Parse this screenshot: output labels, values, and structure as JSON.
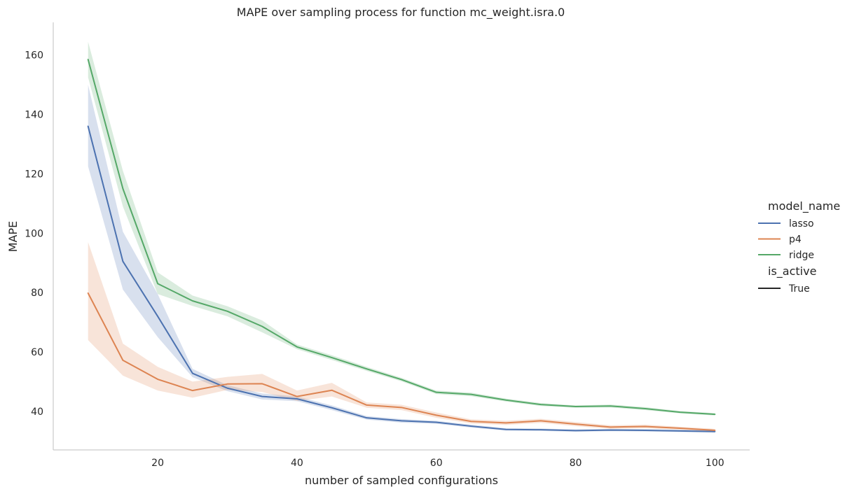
{
  "chart_data": {
    "type": "line",
    "title": "MAPE over sampling process for function mc_weight.isra.0",
    "xlabel": "number of sampled configurations",
    "ylabel": "MAPE",
    "xlim": [
      5,
      105
    ],
    "ylim": [
      27,
      171
    ],
    "xticks": [
      20,
      40,
      60,
      80,
      100
    ],
    "yticks": [
      40,
      60,
      80,
      100,
      120,
      140,
      160
    ],
    "grid": false,
    "legend_position": "right",
    "x": [
      10,
      15,
      20,
      25,
      30,
      35,
      40,
      45,
      50,
      55,
      60,
      65,
      70,
      75,
      80,
      85,
      90,
      95,
      100
    ],
    "series": [
      {
        "name": "lasso",
        "color": "#4c72b0",
        "values": [
          136,
          90.5,
          72,
          52.8,
          47.8,
          45,
          44.2,
          41.2,
          37.8,
          36.8,
          36.3,
          35,
          33.9,
          33.8,
          33.5,
          33.7,
          33.6,
          33.4,
          33.2
        ],
        "lower": [
          122.5,
          81,
          65,
          51.5,
          46.8,
          44,
          43.4,
          40.4,
          37.2,
          36.2,
          35.8,
          34.5,
          33.5,
          33.4,
          33.1,
          33.3,
          33.2,
          33.0,
          32.8
        ],
        "upper": [
          150,
          100.5,
          79.5,
          54.3,
          48.8,
          46,
          45,
          42,
          38.4,
          37.4,
          36.8,
          35.5,
          34.3,
          34.2,
          33.9,
          34.1,
          34.0,
          33.8,
          33.6
        ]
      },
      {
        "name": "p4",
        "color": "#dd8452",
        "values": [
          79.8,
          57.2,
          50.8,
          47,
          49.2,
          49.3,
          45,
          47.1,
          42.1,
          41.3,
          38.7,
          36.6,
          36.1,
          36.8,
          35.7,
          34.7,
          34.9,
          34.3,
          33.6
        ],
        "lower": [
          64,
          52,
          47,
          44.6,
          47.2,
          46.5,
          43.5,
          45,
          41.2,
          40.4,
          37.8,
          35.9,
          35.4,
          36.1,
          35.0,
          34.1,
          34.3,
          33.8,
          33.1
        ],
        "upper": [
          97,
          62.8,
          55,
          50,
          51.6,
          52.6,
          47,
          49.6,
          43,
          42.2,
          39.6,
          37.3,
          36.8,
          37.5,
          36.4,
          35.3,
          35.5,
          34.8,
          34.1
        ]
      },
      {
        "name": "ridge",
        "color": "#55a868",
        "values": [
          158.5,
          115,
          83,
          77.2,
          73.7,
          68.6,
          61.7,
          58.1,
          54.3,
          50.7,
          46.4,
          45.7,
          43.8,
          42.3,
          41.6,
          41.8,
          40.9,
          39.7,
          39
        ],
        "lower": [
          152.5,
          109,
          79.5,
          75.5,
          72,
          66.6,
          60.9,
          57.3,
          53.6,
          50.1,
          45.8,
          45.1,
          43.3,
          41.8,
          41.2,
          41.3,
          40.4,
          39.3,
          38.6
        ],
        "upper": [
          164.5,
          121,
          86.8,
          79,
          75.4,
          70.6,
          62.5,
          58.9,
          55,
          51.3,
          47,
          46.3,
          44.3,
          42.8,
          42.0,
          42.3,
          41.4,
          40.1,
          39.4
        ]
      }
    ],
    "legend": {
      "hue_title": "model_name",
      "hue_entries": [
        "lasso",
        "p4",
        "ridge"
      ],
      "style_title": "is_active",
      "style_entries": [
        "True"
      ],
      "style_color": "#262626"
    }
  }
}
